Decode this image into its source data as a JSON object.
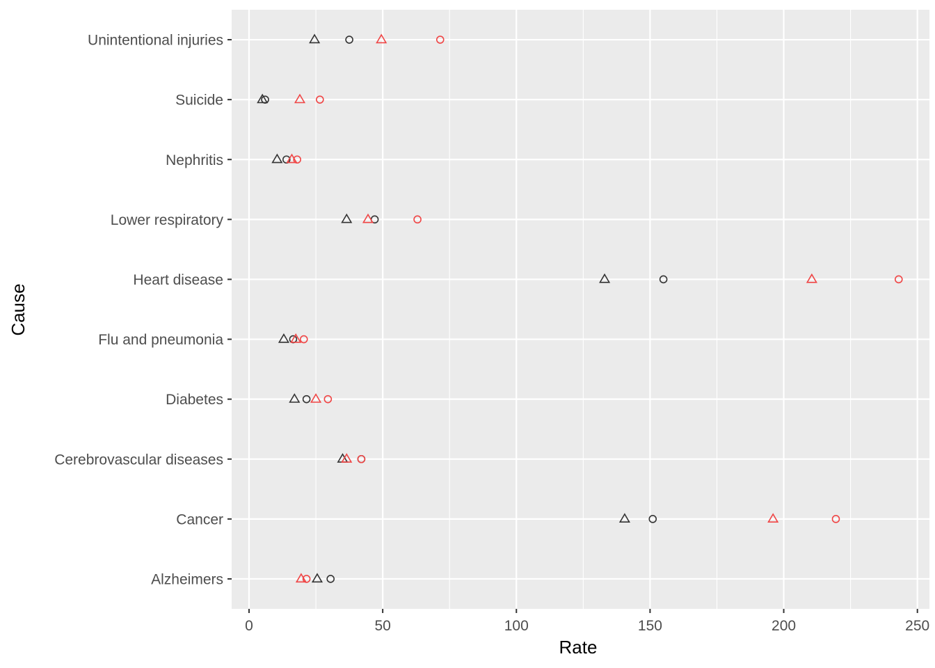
{
  "chart_data": {
    "type": "scatter",
    "xlabel": "Rate",
    "ylabel": "Cause",
    "xlim": [
      -6.5,
      254.5
    ],
    "x_ticks": [
      0,
      50,
      100,
      150,
      200,
      250
    ],
    "categories": [
      "Alzheimers",
      "Cancer",
      "Cerebrovascular diseases",
      "Diabetes",
      "Flu and pneumonia",
      "Heart disease",
      "Lower respiratory",
      "Nephritis",
      "Suicide",
      "Unintentional injuries"
    ],
    "grid": true,
    "legend": "none",
    "series": [
      {
        "color": "#333333",
        "shape": "triangle",
        "values": [
          25.5,
          140.5,
          35,
          17,
          13,
          133,
          36.5,
          10.5,
          5,
          24.5
        ]
      },
      {
        "color": "#333333",
        "shape": "circle",
        "values": [
          30.5,
          151,
          42,
          21.5,
          16.5,
          155,
          47,
          14,
          6,
          37.5
        ]
      },
      {
        "color": "#f04545",
        "shape": "triangle",
        "values": [
          19.5,
          196,
          36.5,
          25,
          17.5,
          210.5,
          44.5,
          16,
          19,
          49.5
        ]
      },
      {
        "color": "#f04545",
        "shape": "circle",
        "values": [
          21.5,
          219.5,
          42,
          29.5,
          20.5,
          243,
          63,
          18,
          26.5,
          71.5
        ]
      }
    ]
  }
}
